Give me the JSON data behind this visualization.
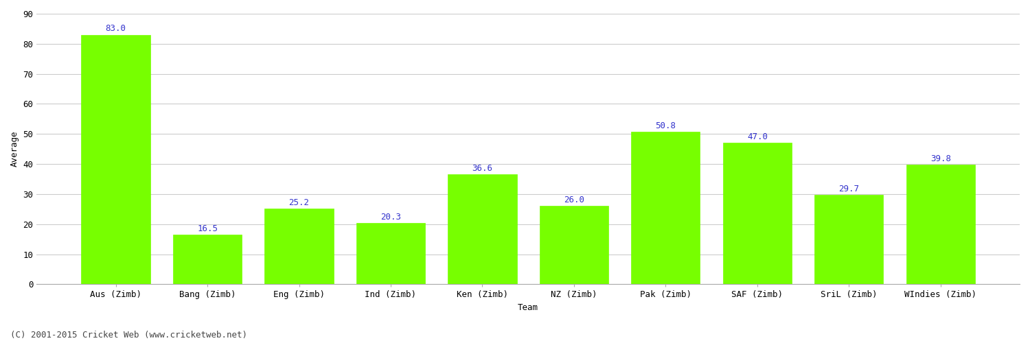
{
  "categories": [
    "Aus (Zimb)",
    "Bang (Zimb)",
    "Eng (Zimb)",
    "Ind (Zimb)",
    "Ken (Zimb)",
    "NZ (Zimb)",
    "Pak (Zimb)",
    "SAF (Zimb)",
    "SriL (Zimb)",
    "WIndies (Zimb)"
  ],
  "values": [
    83.0,
    16.5,
    25.2,
    20.3,
    36.6,
    26.0,
    50.8,
    47.0,
    29.7,
    39.8
  ],
  "bar_color": "#77ff00",
  "bar_edge_color": "#77ff00",
  "value_label_color": "#3333cc",
  "xlabel": "Team",
  "ylabel": "Average",
  "ylim": [
    0,
    90
  ],
  "yticks": [
    0,
    10,
    20,
    30,
    40,
    50,
    60,
    70,
    80,
    90
  ],
  "grid_color": "#cccccc",
  "background_color": "#ffffff",
  "footer": "(C) 2001-2015 Cricket Web (www.cricketweb.net)",
  "value_fontsize": 9,
  "label_fontsize": 9,
  "footer_fontsize": 9,
  "bar_width": 0.75,
  "spine_color": "#aaaaaa"
}
